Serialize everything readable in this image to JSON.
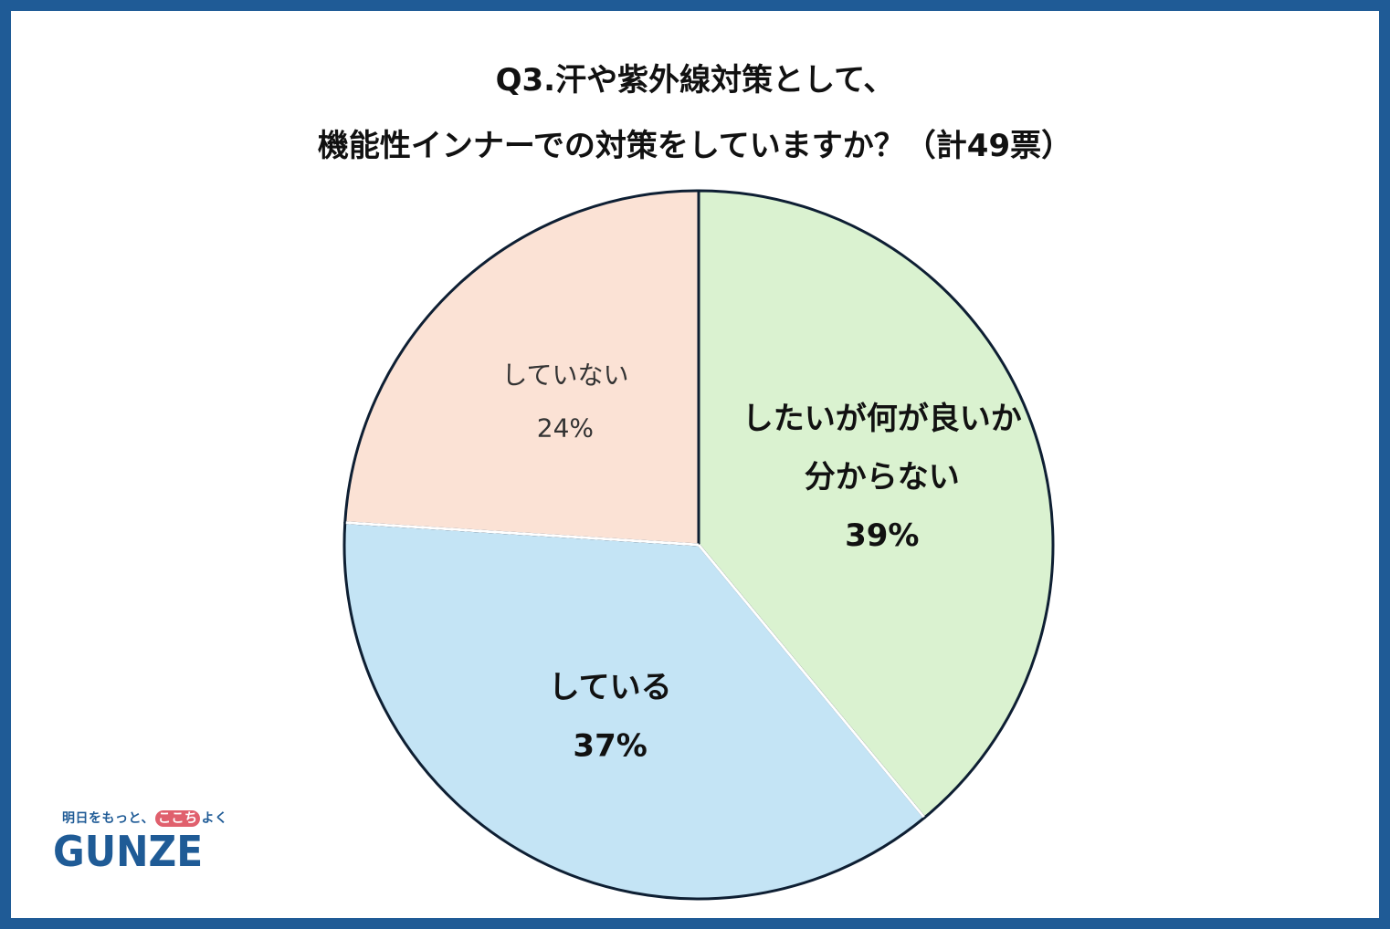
{
  "title": {
    "line1": "Q3.汗や紫外線対策として、",
    "line2": "機能性インナーでの対策をしていますか？（計49票）"
  },
  "chart_data": {
    "type": "pie",
    "start_angle_deg": 0,
    "direction": "clockwise",
    "slices": [
      {
        "label_lines": [
          "したいが何が良いか",
          "分からない"
        ],
        "value_label": "39%",
        "value": 39,
        "color": "#daf2d0",
        "bold": true
      },
      {
        "label_lines": [
          "している"
        ],
        "value_label": "37%",
        "value": 37,
        "color": "#c4e4f5",
        "bold": true
      },
      {
        "label_lines": [
          "していない"
        ],
        "value_label": "24%",
        "value": 24,
        "color": "#fbe2d5",
        "bold": false
      }
    ],
    "edge_color": "#0e1f33",
    "separator_color": "#ffffff"
  },
  "logo": {
    "tagline_pre": "明日をもっと、",
    "tagline_accent": "ここち",
    "tagline_post": "よく",
    "brand": "GUNZE"
  },
  "colors": {
    "frame": "#1f5b96",
    "brand": "#1f5b96",
    "accent": "#e0606d"
  }
}
